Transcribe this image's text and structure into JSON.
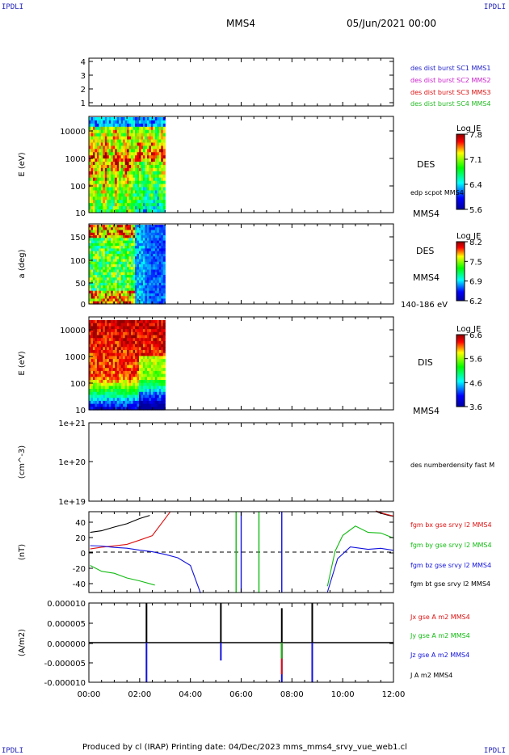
{
  "corner_label": "IPDLI",
  "header": {
    "title": "MMS4",
    "date": "05/Jun/2021 00:00"
  },
  "footer": "Produced by cl (IRAP)   Printing date: 04/Dec/2023   mms_mms4_srvy_vue_web1.cl",
  "time_axis": {
    "labels": [
      "00:00",
      "02:00",
      "04:00",
      "06:00",
      "08:00",
      "10:00",
      "12:00"
    ],
    "range_hours": [
      0,
      12
    ]
  },
  "panels": [
    {
      "id": "burst",
      "type": "table",
      "y_ticks": [
        "4",
        "3",
        "2",
        "1"
      ],
      "legend": [
        {
          "label": "des dist burst SC1 MMS1",
          "color": "#2222cc"
        },
        {
          "label": "des dist burst SC2 MMS2",
          "color": "#cc22cc"
        },
        {
          "label": "des dist burst SC3 MMS3",
          "color": "#dd1111"
        },
        {
          "label": "des dist burst SC4 MMS4",
          "color": "#22bb22"
        }
      ]
    },
    {
      "id": "des_energy",
      "type": "heatmap",
      "ylabel": "E (eV)",
      "y_ticks": [
        "10000",
        "1000",
        "100",
        "10"
      ],
      "right_labels": [
        "DES",
        "edp scpot MMS4",
        "MMS4"
      ],
      "colorbar": {
        "title": "Log JE",
        "ticks": [
          "7.8",
          "7.1",
          "6.4",
          "5.6"
        ]
      },
      "data_extent_hours": [
        0,
        3
      ]
    },
    {
      "id": "des_pitch",
      "type": "heatmap",
      "ylabel": "a (deg)",
      "y_ticks": [
        "150",
        "100",
        "50",
        "0"
      ],
      "right_labels": [
        "DES",
        "MMS4",
        "140-186 eV"
      ],
      "colorbar": {
        "title": "Log JE",
        "ticks": [
          "8.2",
          "7.5",
          "6.9",
          "6.2"
        ]
      },
      "data_extent_hours": [
        0,
        3
      ]
    },
    {
      "id": "dis_energy",
      "type": "heatmap",
      "ylabel": "E (eV)",
      "y_ticks": [
        "10000",
        "1000",
        "100",
        "10"
      ],
      "right_labels": [
        "DIS",
        "MMS4"
      ],
      "colorbar": {
        "title": "Log JE",
        "ticks": [
          "6.6",
          "5.6",
          "4.6",
          "3.6"
        ]
      },
      "data_extent_hours": [
        0,
        3
      ]
    },
    {
      "id": "density",
      "type": "line",
      "ylabel": "(cm^-3)",
      "y_ticks": [
        "1e+21",
        "1e+20",
        "1e+19"
      ],
      "legend": [
        {
          "label": "des numberdensity fast M",
          "color": "#000000"
        }
      ]
    },
    {
      "id": "fgm",
      "type": "line",
      "ylabel": "(nT)",
      "y_ticks": [
        "40",
        "20",
        "0",
        "-20",
        "-40"
      ],
      "ylim": [
        -48,
        48
      ],
      "legend": [
        {
          "label": "fgm bx gse srvy l2 MMS4",
          "color": "#dd1111"
        },
        {
          "label": "fgm by gse srvy l2 MMS4",
          "color": "#11bb11"
        },
        {
          "label": "fgm bz gse srvy l2 MMS4",
          "color": "#1111dd"
        },
        {
          "label": "fgm bt gse srvy l2 MMS4",
          "color": "#000000"
        }
      ]
    },
    {
      "id": "current",
      "type": "line",
      "ylabel": "(A/m2)",
      "y_ticks": [
        "0.000010",
        "0.000005",
        "0.000000",
        "-0.000005",
        "-0.000010"
      ],
      "ylim": [
        -1e-05,
        1e-05
      ],
      "legend": [
        {
          "label": "Jx gse A m2 MMS4",
          "color": "#dd1111"
        },
        {
          "label": "Jy gse A m2 MMS4",
          "color": "#11bb11"
        },
        {
          "label": "Jz gse A m2 MMS4",
          "color": "#1111dd"
        },
        {
          "label": "J A m2 MMS4",
          "color": "#000000"
        }
      ]
    }
  ],
  "chart_data": [
    {
      "type": "line",
      "panel": "fgm",
      "x_unit": "hours",
      "ylim": [
        -48,
        48
      ],
      "series": [
        {
          "name": "fgm bt gse srvy l2 MMS4",
          "color": "#000000",
          "x": [
            0.05,
            0.5,
            1.0,
            1.5,
            2.0,
            2.4,
            11.3,
            11.5,
            11.8,
            12.0
          ],
          "values": [
            24,
            26,
            29,
            33,
            39,
            44,
            48,
            47,
            44,
            42
          ]
        },
        {
          "name": "fgm bx gse srvy l2 MMS4",
          "color": "#dd1111",
          "x": [
            0.05,
            0.5,
            1.0,
            1.5,
            2.0,
            2.5,
            3.2,
            11.3,
            11.6,
            12.0
          ],
          "values": [
            4,
            6,
            7,
            10,
            14,
            20,
            48,
            48,
            46,
            42
          ]
        },
        {
          "name": "fgm by gse srvy l2 MMS4",
          "color": "#11bb11",
          "x": [
            0.05,
            0.5,
            1.0,
            1.5,
            2.0,
            2.6,
            9.4,
            9.7,
            10.0,
            10.5,
            11.0,
            11.5,
            12.0
          ],
          "values": [
            -16,
            -22,
            -26,
            -30,
            -34,
            -40,
            -40,
            0,
            20,
            30,
            24,
            22,
            16
          ]
        },
        {
          "name": "fgm bz gse srvy l2 MMS4",
          "color": "#1111dd",
          "x": [
            0.05,
            0.5,
            1.0,
            1.5,
            2.0,
            2.5,
            3.0,
            3.5,
            4.0,
            4.4,
            9.4,
            9.8,
            10.3,
            11.0,
            11.5,
            12.0
          ],
          "values": [
            8,
            7,
            6,
            4,
            2,
            0,
            -3,
            -7,
            -15,
            -48,
            -48,
            -8,
            6,
            4,
            4,
            2
          ]
        }
      ]
    },
    {
      "type": "line",
      "panel": "current",
      "x_unit": "hours",
      "ylim": [
        -1e-05,
        1e-05
      ],
      "series": [
        {
          "name": "J A m2 MMS4",
          "color": "#000000",
          "x": [
            2.27,
            5.2,
            7.6,
            8.8
          ],
          "values": [
            1e-05,
            1e-05,
            8.7e-06,
            1e-05
          ]
        },
        {
          "name": "Jz gse A m2 MMS4",
          "color": "#1111dd",
          "x": [
            2.27,
            5.2,
            7.6,
            8.8
          ],
          "values": [
            -1e-05,
            -4.5e-06,
            -1e-05,
            -1e-05
          ]
        },
        {
          "name": "Jx gse A m2 MMS4",
          "color": "#dd1111",
          "x": [
            7.6
          ],
          "values": [
            -8e-06
          ]
        },
        {
          "name": "Jy gse A m2 MMS4",
          "color": "#11bb11",
          "x": [
            7.6
          ],
          "values": [
            -4e-06
          ]
        }
      ]
    }
  ]
}
